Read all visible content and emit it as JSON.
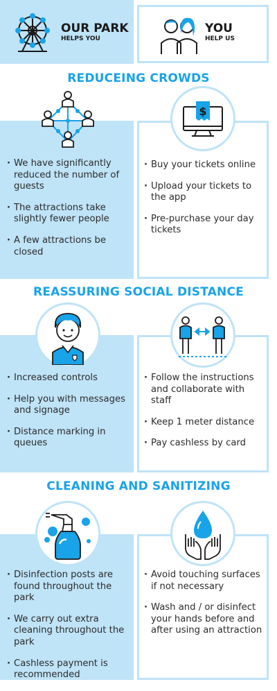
{
  "header": {
    "left_title": "OUR PARK",
    "left_sub": "HELPS YOU",
    "right_title": "YOU",
    "right_sub": "HELP US"
  },
  "sections": [
    {
      "title": "REDUCEING CROWDS",
      "left_items": [
        "We have significantly reduced the number of guests",
        "The attractions take slightly fewer people",
        "A few attractions be closed"
      ],
      "right_items": [
        "Buy your tickets online",
        "Upload your tickets to the app",
        "Pre-purchase your day tickets"
      ]
    },
    {
      "title": "REASSURING SOCIAL DISTANCE",
      "left_items": [
        "Increased controls",
        "Help you with messages and signage",
        "Distance marking in queues"
      ],
      "right_items": [
        "Follow the instructions and collaborate with staff",
        "Keep 1 meter distance",
        "Pay cashless by card"
      ]
    },
    {
      "title": "CLEANING AND SANITIZING",
      "left_items": [
        "Disinfection posts are found throughout the park",
        "We carry out extra cleaning throughout the park",
        "Cashless payment is recommended"
      ],
      "right_items": [
        "Avoid touching surfaces if not necessary",
        "Wash and / or disinfect your hands before and after using an attraction"
      ]
    }
  ],
  "icons": {
    "park": "ferris-wheel-icon",
    "you": "people-icon",
    "crowd": "crowd-network-icon",
    "tickets": "online-ticket-icon",
    "staff": "staff-person-icon",
    "distance": "distance-people-icon",
    "spray": "spray-bottle-icon",
    "hands": "hand-washing-icon"
  },
  "colors": {
    "accent": "#19a3e8",
    "panel": "#bfe3f7",
    "text": "#2b2b2b"
  }
}
